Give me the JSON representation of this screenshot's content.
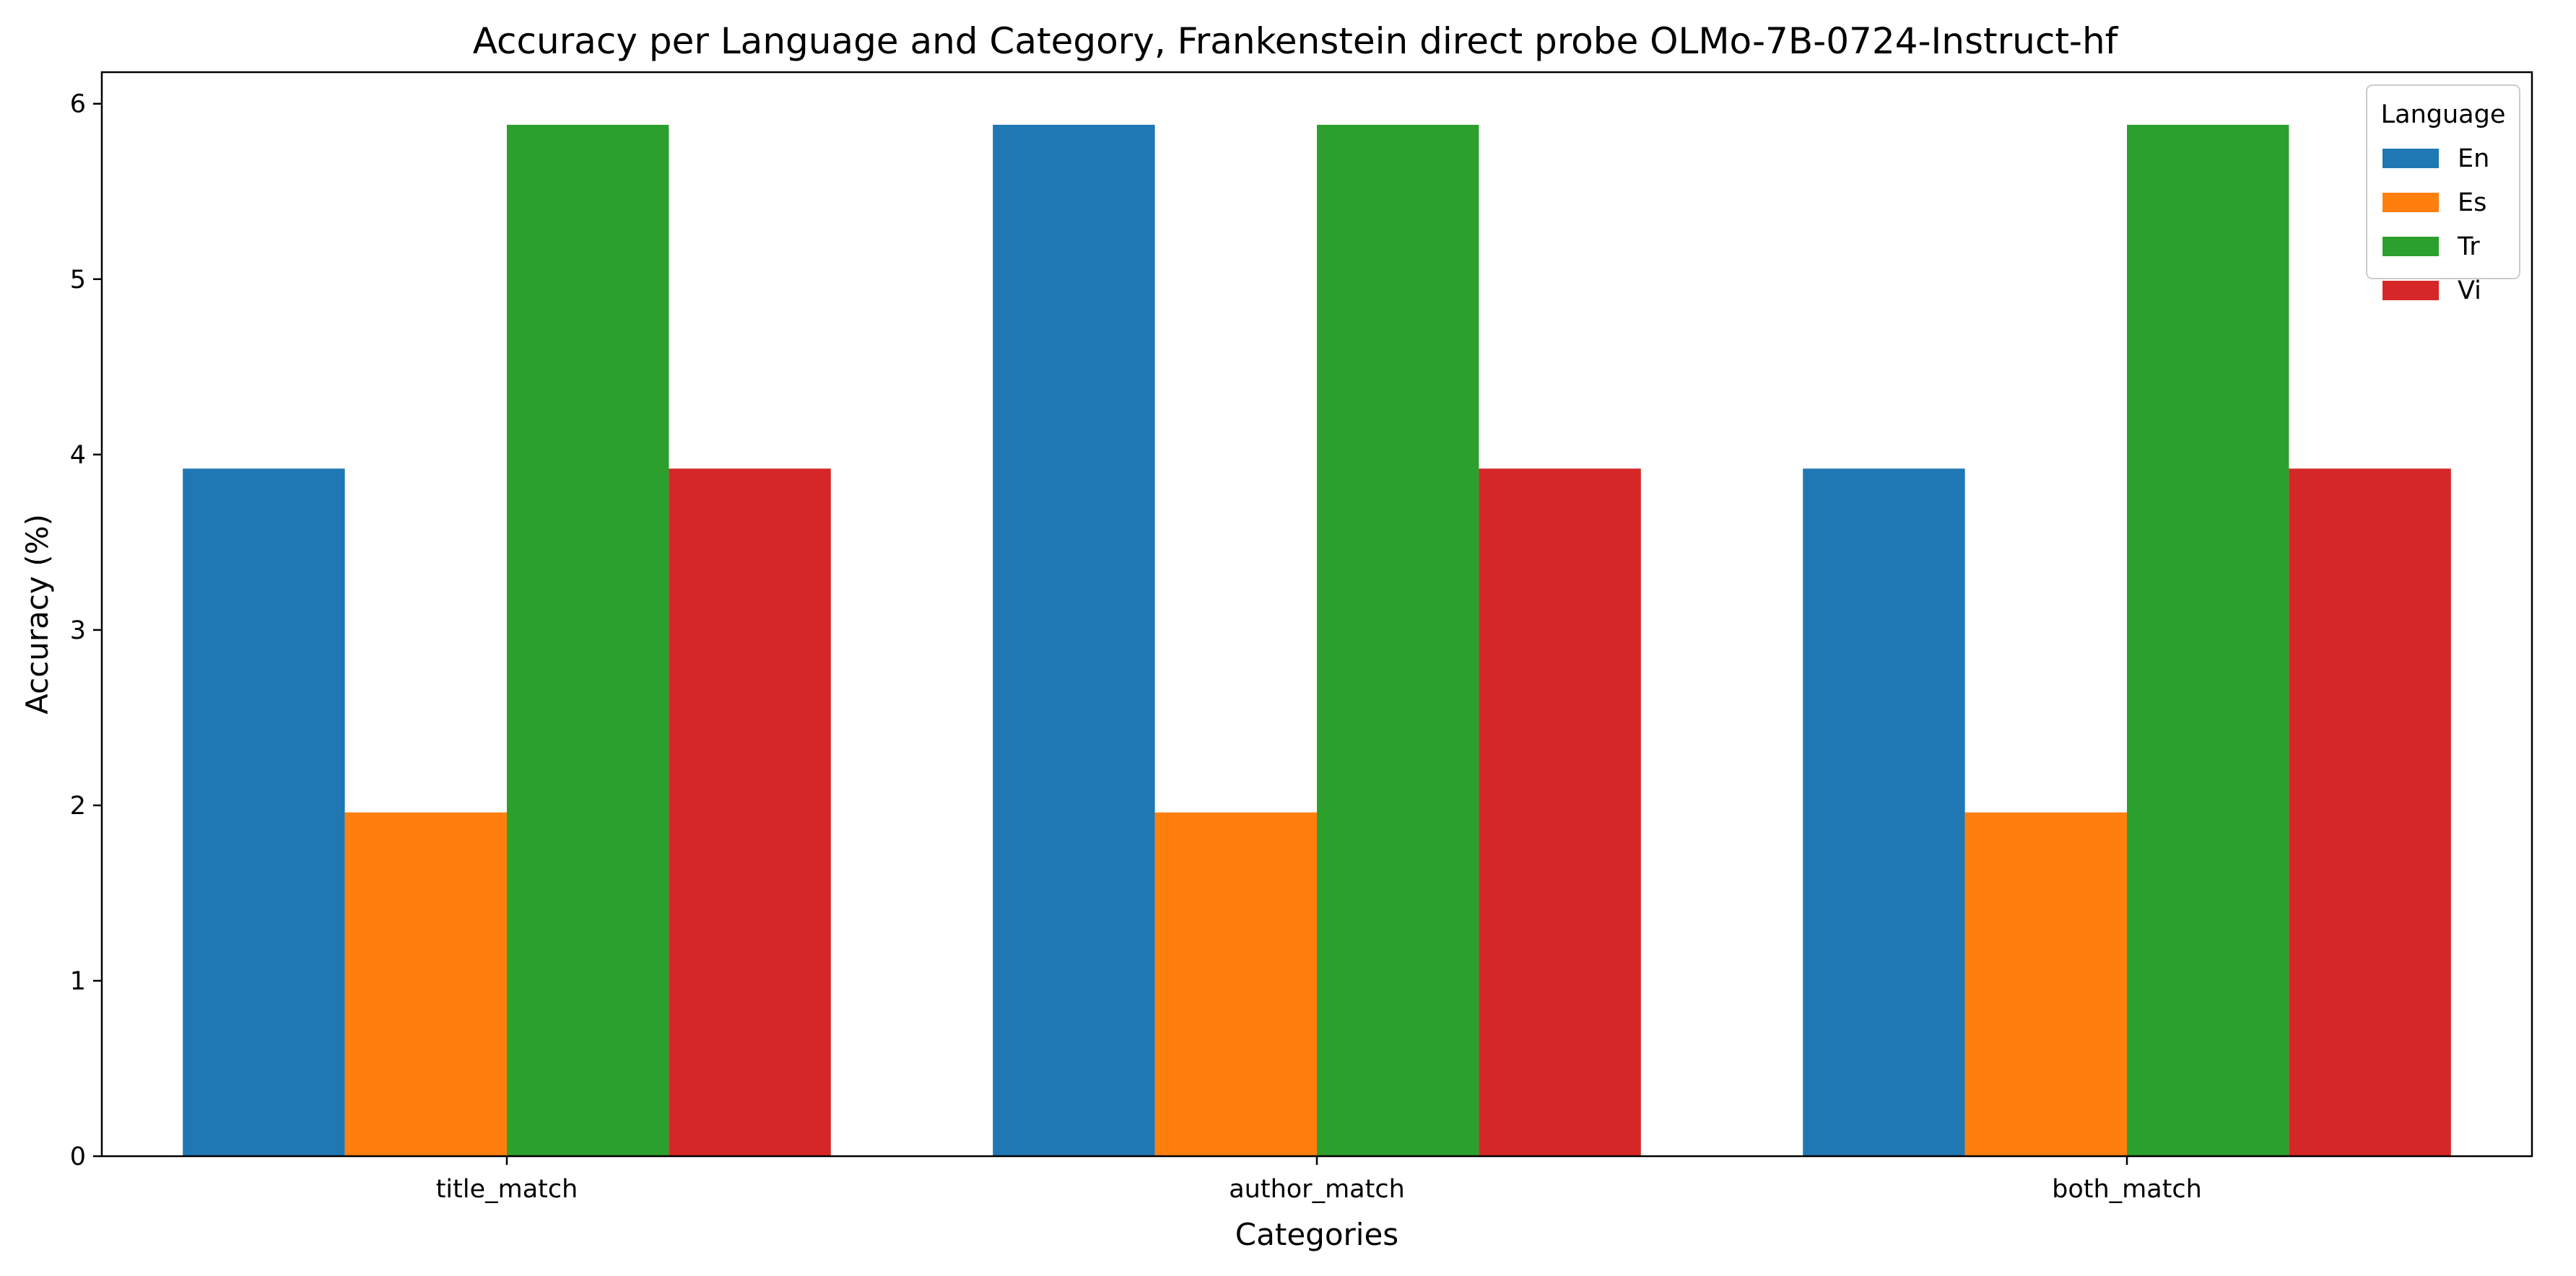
{
  "chart_data": {
    "type": "bar",
    "title": "Accuracy per Language and Category, Frankenstein direct probe OLMo-7B-0724-Instruct-hf",
    "xlabel": "Categories",
    "ylabel": "Accuracy (%)",
    "categories": [
      "title_match",
      "author_match",
      "both_match"
    ],
    "series": [
      {
        "name": "En",
        "color": "#1f77b4",
        "values": [
          3.92,
          5.88,
          3.92
        ]
      },
      {
        "name": "Es",
        "color": "#ff7f0e",
        "values": [
          1.96,
          1.96,
          1.96
        ]
      },
      {
        "name": "Tr",
        "color": "#2ca02c",
        "values": [
          5.88,
          5.88,
          5.88
        ]
      },
      {
        "name": "Vi",
        "color": "#d62728",
        "values": [
          3.92,
          3.92,
          3.92
        ]
      }
    ],
    "ylim": [
      0,
      6.18
    ],
    "yticks": [
      "0",
      "1",
      "2",
      "3",
      "4",
      "5",
      "6"
    ],
    "grid": false,
    "legend": {
      "title": "Language",
      "placement": "top-right"
    }
  }
}
